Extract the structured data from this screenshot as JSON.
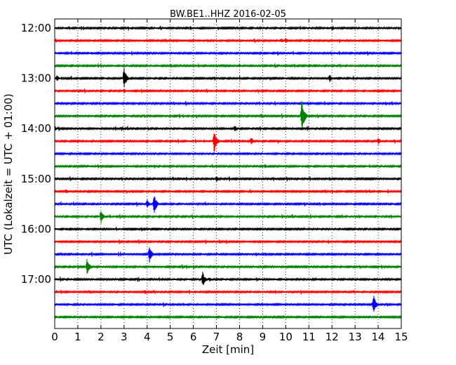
{
  "chart_data": {
    "type": "line",
    "title": "BW.BE1..HHZ 2016-02-05",
    "xlabel": "Zeit  [min]",
    "ylabel": "UTC (Lokalzeit = UTC + 01:00)",
    "xlim": [
      0,
      15
    ],
    "x_ticks": [
      "0",
      "1",
      "2",
      "3",
      "4",
      "5",
      "6",
      "7",
      "8",
      "9",
      "10",
      "11",
      "12",
      "13",
      "14",
      "15"
    ],
    "y_ticks": [
      "12:00",
      "13:00",
      "14:00",
      "15:00",
      "16:00",
      "17:00"
    ],
    "grid": "dotted vertical lines at each minute",
    "trace_colors": [
      "#000000",
      "#ff0000",
      "#0000ff",
      "#008000"
    ],
    "series": [
      {
        "start": "12:00",
        "color": "#000000",
        "events": [
          {
            "minute": 12.0,
            "amplitude": 0.3
          },
          {
            "minute": 11.8,
            "amplitude": 0.2
          }
        ]
      },
      {
        "start": "12:15",
        "color": "#ff0000",
        "events": [
          {
            "minute": 10.0,
            "amplitude": 0.4
          },
          {
            "minute": 9.8,
            "amplitude": 0.3
          }
        ]
      },
      {
        "start": "12:30",
        "color": "#0000ff",
        "events": [
          {
            "minute": 1.6,
            "amplitude": 0.2
          }
        ]
      },
      {
        "start": "12:45",
        "color": "#008000",
        "events": [
          {
            "minute": 8.0,
            "amplitude": 0.2
          }
        ]
      },
      {
        "start": "13:00",
        "color": "#000000",
        "events": [
          {
            "minute": 3.0,
            "amplitude": 1.5
          },
          {
            "minute": 0.1,
            "amplitude": 0.4
          },
          {
            "minute": 11.9,
            "amplitude": 0.5
          }
        ]
      },
      {
        "start": "13:15",
        "color": "#ff0000",
        "events": [
          {
            "minute": 3.0,
            "amplitude": 0.3
          }
        ]
      },
      {
        "start": "13:30",
        "color": "#0000ff",
        "events": []
      },
      {
        "start": "13:45",
        "color": "#008000",
        "events": [
          {
            "minute": 10.7,
            "amplitude": 2.4
          }
        ]
      },
      {
        "start": "14:00",
        "color": "#000000",
        "events": [
          {
            "minute": 7.8,
            "amplitude": 0.4
          }
        ]
      },
      {
        "start": "14:15",
        "color": "#ff0000",
        "events": [
          {
            "minute": 6.9,
            "amplitude": 1.6
          },
          {
            "minute": 8.5,
            "amplitude": 0.5
          },
          {
            "minute": 14.0,
            "amplitude": 0.5
          }
        ]
      },
      {
        "start": "14:30",
        "color": "#0000ff",
        "events": []
      },
      {
        "start": "14:45",
        "color": "#008000",
        "events": [
          {
            "minute": 9.1,
            "amplitude": 0.3
          }
        ]
      },
      {
        "start": "15:00",
        "color": "#000000",
        "events": [
          {
            "minute": 7.0,
            "amplitude": 0.4
          }
        ]
      },
      {
        "start": "15:15",
        "color": "#ff0000",
        "events": [
          {
            "minute": 0.5,
            "amplitude": 0.3
          }
        ]
      },
      {
        "start": "15:30",
        "color": "#0000ff",
        "events": [
          {
            "minute": 4.0,
            "amplitude": 0.6
          },
          {
            "minute": 4.3,
            "amplitude": 1.4
          }
        ]
      },
      {
        "start": "15:45",
        "color": "#008000",
        "events": [
          {
            "minute": 2.0,
            "amplitude": 0.9
          }
        ]
      },
      {
        "start": "16:00",
        "color": "#000000",
        "events": [
          {
            "minute": 0.5,
            "amplitude": 0.2
          }
        ]
      },
      {
        "start": "16:15",
        "color": "#ff0000",
        "events": []
      },
      {
        "start": "16:30",
        "color": "#0000ff",
        "events": [
          {
            "minute": 4.1,
            "amplitude": 1.1
          }
        ]
      },
      {
        "start": "16:45",
        "color": "#008000",
        "events": [
          {
            "minute": 1.4,
            "amplitude": 1.1
          }
        ]
      },
      {
        "start": "17:00",
        "color": "#000000",
        "events": [
          {
            "minute": 6.4,
            "amplitude": 1.0
          },
          {
            "minute": 6.7,
            "amplitude": 0.3
          }
        ]
      },
      {
        "start": "17:15",
        "color": "#ff0000",
        "events": [
          {
            "minute": 3.9,
            "amplitude": 0.3
          },
          {
            "minute": 12.6,
            "amplitude": 0.2
          }
        ]
      },
      {
        "start": "17:30",
        "color": "#0000ff",
        "events": [
          {
            "minute": 13.8,
            "amplitude": 1.3
          },
          {
            "minute": 9.2,
            "amplitude": 0.2
          }
        ]
      },
      {
        "start": "17:45",
        "color": "#008000",
        "events": []
      }
    ]
  }
}
